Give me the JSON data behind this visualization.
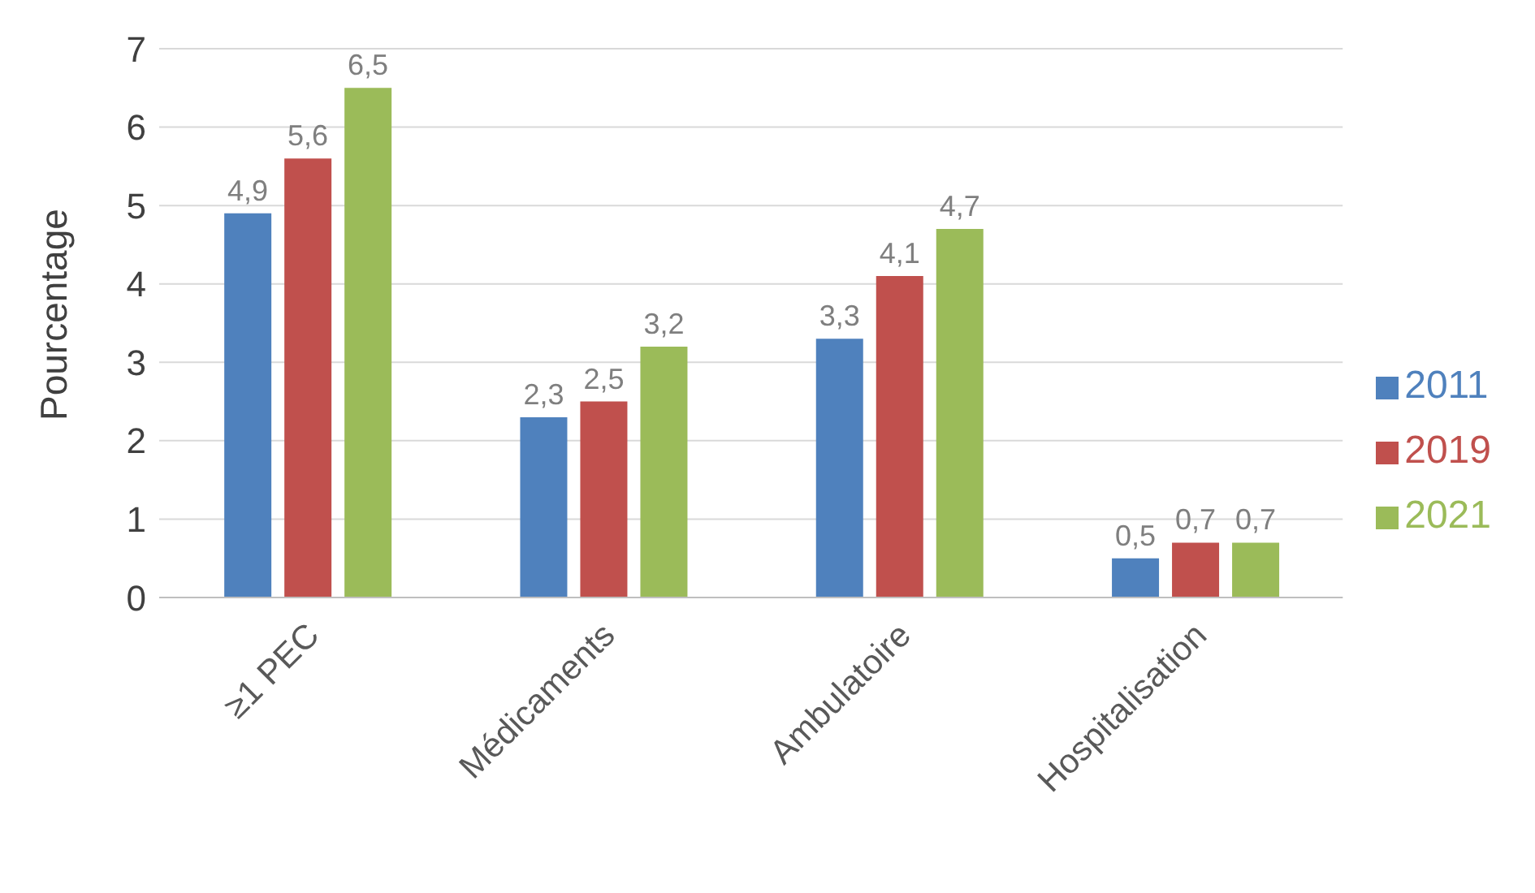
{
  "chart_data": {
    "type": "bar",
    "ylabel": "Pourcentage",
    "categories": [
      "≥1 PEC",
      "Médicaments",
      "Ambulatoire",
      "Hospitalisation"
    ],
    "series": [
      {
        "name": "2011",
        "color": "#4f81bd",
        "values": [
          4.9,
          2.3,
          3.3,
          0.5
        ],
        "value_labels": [
          "4,9",
          "2,3",
          "3,3",
          "0,5"
        ]
      },
      {
        "name": "2019",
        "color": "#c0504d",
        "values": [
          5.6,
          2.5,
          4.1,
          0.7
        ],
        "value_labels": [
          "5,6",
          "2,5",
          "4,1",
          "0,7"
        ]
      },
      {
        "name": "2021",
        "color": "#9bbb59",
        "values": [
          6.5,
          3.2,
          4.7,
          0.7
        ],
        "value_labels": [
          "6,5",
          "3,2",
          "4,7",
          "0,7"
        ]
      }
    ],
    "ylim": [
      0,
      7
    ],
    "yticks": [
      0,
      1,
      2,
      3,
      4,
      5,
      6,
      7
    ],
    "grid": "y",
    "legend": "right"
  }
}
